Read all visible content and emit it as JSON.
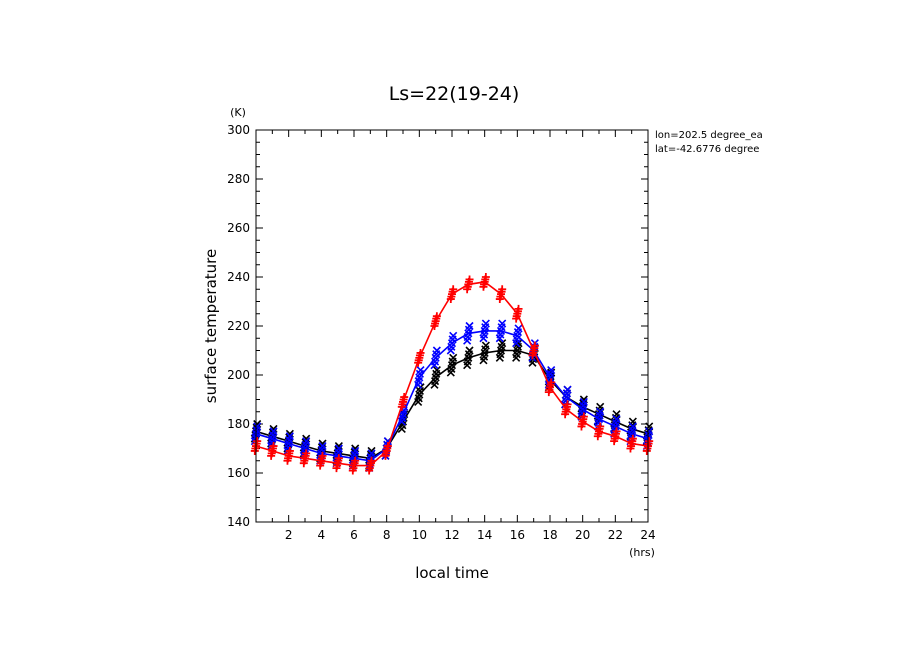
{
  "chart_data": {
    "type": "line",
    "title": "Ls=22(19-24)",
    "xlabel": "local time",
    "ylabel": "surface temperature",
    "x_unit": "(hrs)",
    "y_unit": "(K)",
    "xlim": [
      0,
      24
    ],
    "ylim": [
      140,
      300
    ],
    "x_ticks": [
      2,
      4,
      6,
      8,
      10,
      12,
      14,
      16,
      18,
      20,
      22,
      24
    ],
    "y_ticks": [
      140,
      160,
      180,
      200,
      220,
      240,
      260,
      280,
      300
    ],
    "grid": false,
    "annotations": [
      "lon=202.5 degree_ea",
      "lat=-42.6776 degree"
    ],
    "x": [
      0,
      1,
      2,
      3,
      4,
      5,
      6,
      7,
      8,
      9,
      10,
      11,
      12,
      13,
      14,
      15,
      16,
      17,
      18,
      19,
      20,
      21,
      22,
      23,
      24
    ],
    "series": [
      {
        "color": "#000000",
        "marker": "x",
        "values": [
          177,
          175,
          173,
          171,
          169,
          168,
          167,
          166,
          170,
          181,
          192,
          199,
          204,
          207,
          209,
          210,
          210,
          208,
          198,
          191,
          187,
          184,
          181,
          178,
          176
        ],
        "spread": 3
      },
      {
        "color": "#0000ff",
        "marker": "x",
        "values": [
          176,
          174,
          172,
          170,
          168,
          167,
          166,
          165,
          170,
          184,
          199,
          207,
          213,
          217,
          218,
          218,
          216,
          210,
          199,
          191,
          186,
          182,
          179,
          176,
          174
        ],
        "spread": 3
      },
      {
        "color": "#ff0000",
        "marker": "+",
        "values": [
          171,
          169,
          167,
          166,
          165,
          164,
          163,
          163,
          169,
          189,
          207,
          222,
          233,
          237,
          238,
          233,
          225,
          210,
          195,
          186,
          181,
          177,
          175,
          172,
          171
        ],
        "spread": 2
      }
    ]
  }
}
